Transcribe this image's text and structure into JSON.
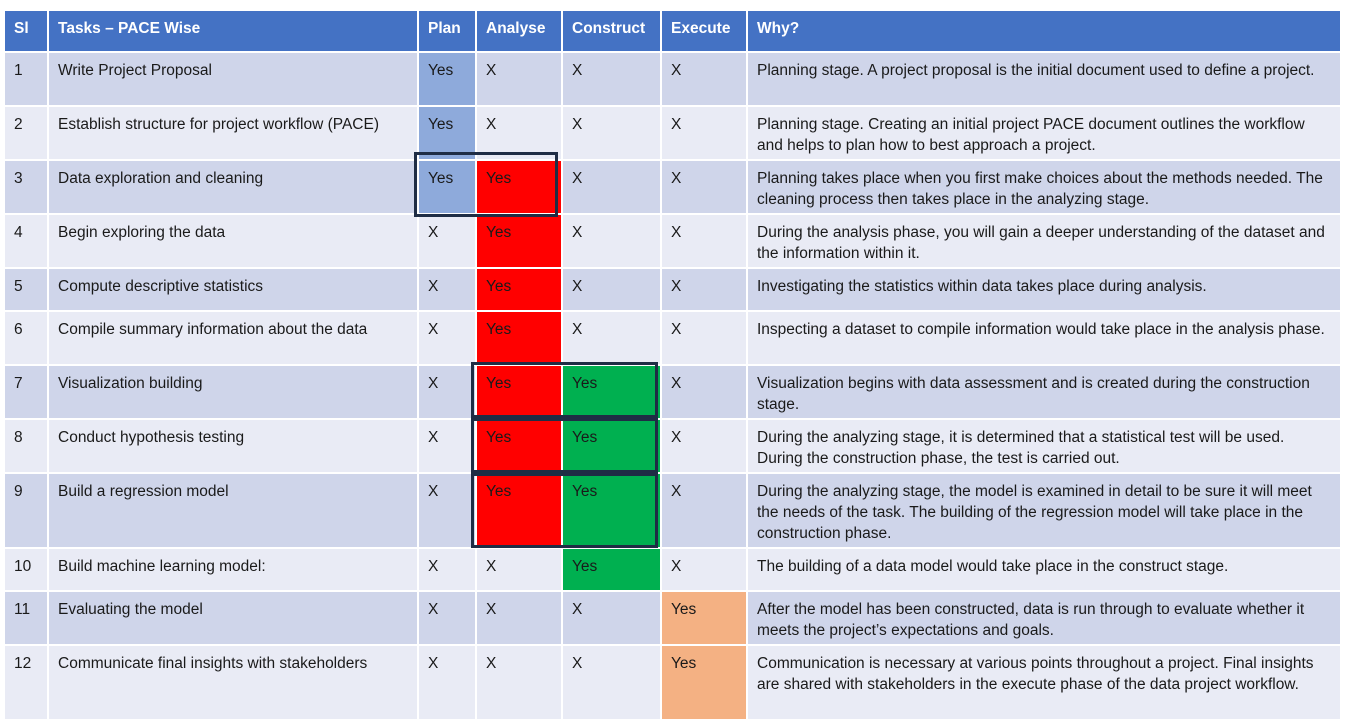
{
  "table": {
    "headers": {
      "si": "Sl",
      "task": "Tasks – PACE Wise",
      "plan": "Plan",
      "analyse": "Analyse",
      "construct": "Construct",
      "execute": "Execute",
      "why": "Why?"
    },
    "rows": [
      {
        "si": "1",
        "task": "Write Project Proposal",
        "plan": "Yes",
        "analyse": "X",
        "construct": "X",
        "execute": "X",
        "why": "Planning stage. A project proposal is the initial document used to define a project."
      },
      {
        "si": "2",
        "task": "Establish structure for project workflow (PACE)",
        "plan": "Yes",
        "analyse": "X",
        "construct": "X",
        "execute": "X",
        "why": "Planning stage. Creating an initial project PACE document outlines the workflow and helps to plan how to best approach a project."
      },
      {
        "si": "3",
        "task": "Data exploration and cleaning",
        "plan": "Yes",
        "analyse": "Yes",
        "construct": "X",
        "execute": "X",
        "why": "Planning takes place when you first make choices about the methods needed. The cleaning process then takes place in the analyzing stage."
      },
      {
        "si": "4",
        "task": "Begin exploring the data",
        "plan": "X",
        "analyse": "Yes",
        "construct": "X",
        "execute": "X",
        "why": "During the analysis phase, you will gain a deeper understanding of the dataset and the information within it."
      },
      {
        "si": "5",
        "task": "Compute descriptive statistics",
        "plan": "X",
        "analyse": "Yes",
        "construct": "X",
        "execute": "X",
        "why": "Investigating the statistics within data takes place during analysis."
      },
      {
        "si": "6",
        "task": "Compile summary information about the data",
        "plan": "X",
        "analyse": "Yes",
        "construct": "X",
        "execute": "X",
        "why": "Inspecting a dataset to compile information would take place in the analysis phase."
      },
      {
        "si": "7",
        "task": "Visualization building",
        "plan": "X",
        "analyse": "Yes",
        "construct": "Yes",
        "execute": "X",
        "why": "Visualization begins with data assessment and is created during the construction stage."
      },
      {
        "si": "8",
        "task": "Conduct hypothesis testing",
        "plan": "X",
        "analyse": "Yes",
        "construct": "Yes",
        "execute": "X",
        "why": "During the analyzing stage, it is determined that a statistical test will be used. During the construction phase, the test is carried out."
      },
      {
        "si": "9",
        "task": "Build a regression model",
        "plan": "X",
        "analyse": "Yes",
        "construct": "Yes",
        "execute": "X",
        "why": "During the analyzing stage, the model is examined in detail to be sure it will meet the needs of the task. The building of the regression model will take place in the construction phase."
      },
      {
        "si": "10",
        "task": "Build machine learning model:",
        "plan": "X",
        "analyse": "X",
        "construct": "Yes",
        "execute": "X",
        "why": "The building of a data model would take place in the construct stage."
      },
      {
        "si": "11",
        "task": "Evaluating the model",
        "plan": "X",
        "analyse": "X",
        "construct": "X",
        "execute": "Yes",
        "why": "After the model has been constructed, data is run through to evaluate whether it meets the project’s expectations and goals."
      },
      {
        "si": "12",
        "task": "Communicate final insights with stakeholders",
        "plan": "X",
        "analyse": "X",
        "construct": "X",
        "execute": "Yes",
        "why": "Communication is necessary at various points throughout a project. Final insights are shared with stakeholders in the execute phase of the data project workflow."
      }
    ]
  },
  "colors": {
    "header": "#4472c4",
    "row_odd": "#cfd5ea",
    "row_even": "#e9ebf5",
    "plan_yes": "#8eaadb",
    "analyse_yes": "#ff0000",
    "construct_yes": "#00b050",
    "execute_yes": "#f4b183",
    "highlight_border": "#1f2d45"
  }
}
